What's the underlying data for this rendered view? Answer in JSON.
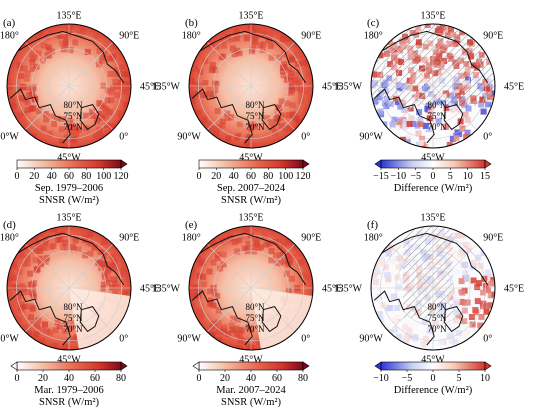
{
  "colors": {
    "white": "#ffffff",
    "light_red": "#f6cbb4",
    "mid_red": "#e8694f",
    "strong_red": "#d2342b",
    "dark_red": "#7d0a1a",
    "blue": "#2a36d4",
    "light_blue": "#c9cff5",
    "coast": "#111111",
    "grid": "#cfcfcf"
  },
  "lon_labels": [
    "135°E",
    "90°E",
    "45°E",
    "0°",
    "45°W",
    "90°W",
    "135°W",
    "180°"
  ],
  "lat_labels": [
    "80°N",
    "75°N",
    "70°N"
  ],
  "chart_data": [
    {
      "panel": "(a)",
      "type": "heatmap",
      "projection": "north-polar-stereographic",
      "variable": "SNSR",
      "period_label": "Sep. 1979–2006",
      "unit_label": "SNSR (W/m²)",
      "colorbar": {
        "ticks": [
          "0",
          "20",
          "40",
          "60",
          "80",
          "100",
          "120"
        ],
        "range": [
          0,
          120
        ],
        "extend": "max",
        "scheme": "sequential-red"
      },
      "pattern": "uniform-red"
    },
    {
      "panel": "(b)",
      "type": "heatmap",
      "projection": "north-polar-stereographic",
      "variable": "SNSR",
      "period_label": "Sep. 2007–2024",
      "unit_label": "SNSR (W/m²)",
      "colorbar": {
        "ticks": [
          "0",
          "20",
          "40",
          "60",
          "80",
          "100",
          "120"
        ],
        "range": [
          0,
          120
        ],
        "extend": "max",
        "scheme": "sequential-red"
      },
      "pattern": "uniform-red"
    },
    {
      "panel": "(c)",
      "type": "heatmap",
      "projection": "north-polar-stereographic",
      "variable": "Difference",
      "period_label": "",
      "unit_label": "Difference (W/m²)",
      "colorbar": {
        "ticks": [
          "−15",
          "−10",
          "−5",
          "0",
          "5",
          "10",
          "15"
        ],
        "range": [
          -15,
          15
        ],
        "extend": "both",
        "scheme": "diverging-blue-red"
      },
      "pattern": "difference-september"
    },
    {
      "panel": "(d)",
      "type": "heatmap",
      "projection": "north-polar-stereographic",
      "variable": "SNSR",
      "period_label": "Mar. 1979–2006",
      "unit_label": "SNSR (W/m²)",
      "colorbar": {
        "ticks": [
          "0",
          "20",
          "40",
          "60",
          "80"
        ],
        "range": [
          0,
          80
        ],
        "extend": "both",
        "scheme": "sequential-red"
      },
      "pattern": "red-with-pale-wedge"
    },
    {
      "panel": "(e)",
      "type": "heatmap",
      "projection": "north-polar-stereographic",
      "variable": "SNSR",
      "period_label": "Mar. 2007–2024",
      "unit_label": "SNSR (W/m²)",
      "colorbar": {
        "ticks": [
          "0",
          "20",
          "40",
          "60",
          "80"
        ],
        "range": [
          0,
          80
        ],
        "extend": "both",
        "scheme": "sequential-red"
      },
      "pattern": "red-with-pale-wedge"
    },
    {
      "panel": "(f)",
      "type": "heatmap",
      "projection": "north-polar-stereographic",
      "variable": "Difference",
      "period_label": "",
      "unit_label": "Difference (W/m²)",
      "colorbar": {
        "ticks": [
          "−10",
          "−5",
          "0",
          "5",
          "10"
        ],
        "range": [
          -10,
          10
        ],
        "extend": "both",
        "scheme": "diverging-blue-red"
      },
      "pattern": "difference-march"
    }
  ]
}
